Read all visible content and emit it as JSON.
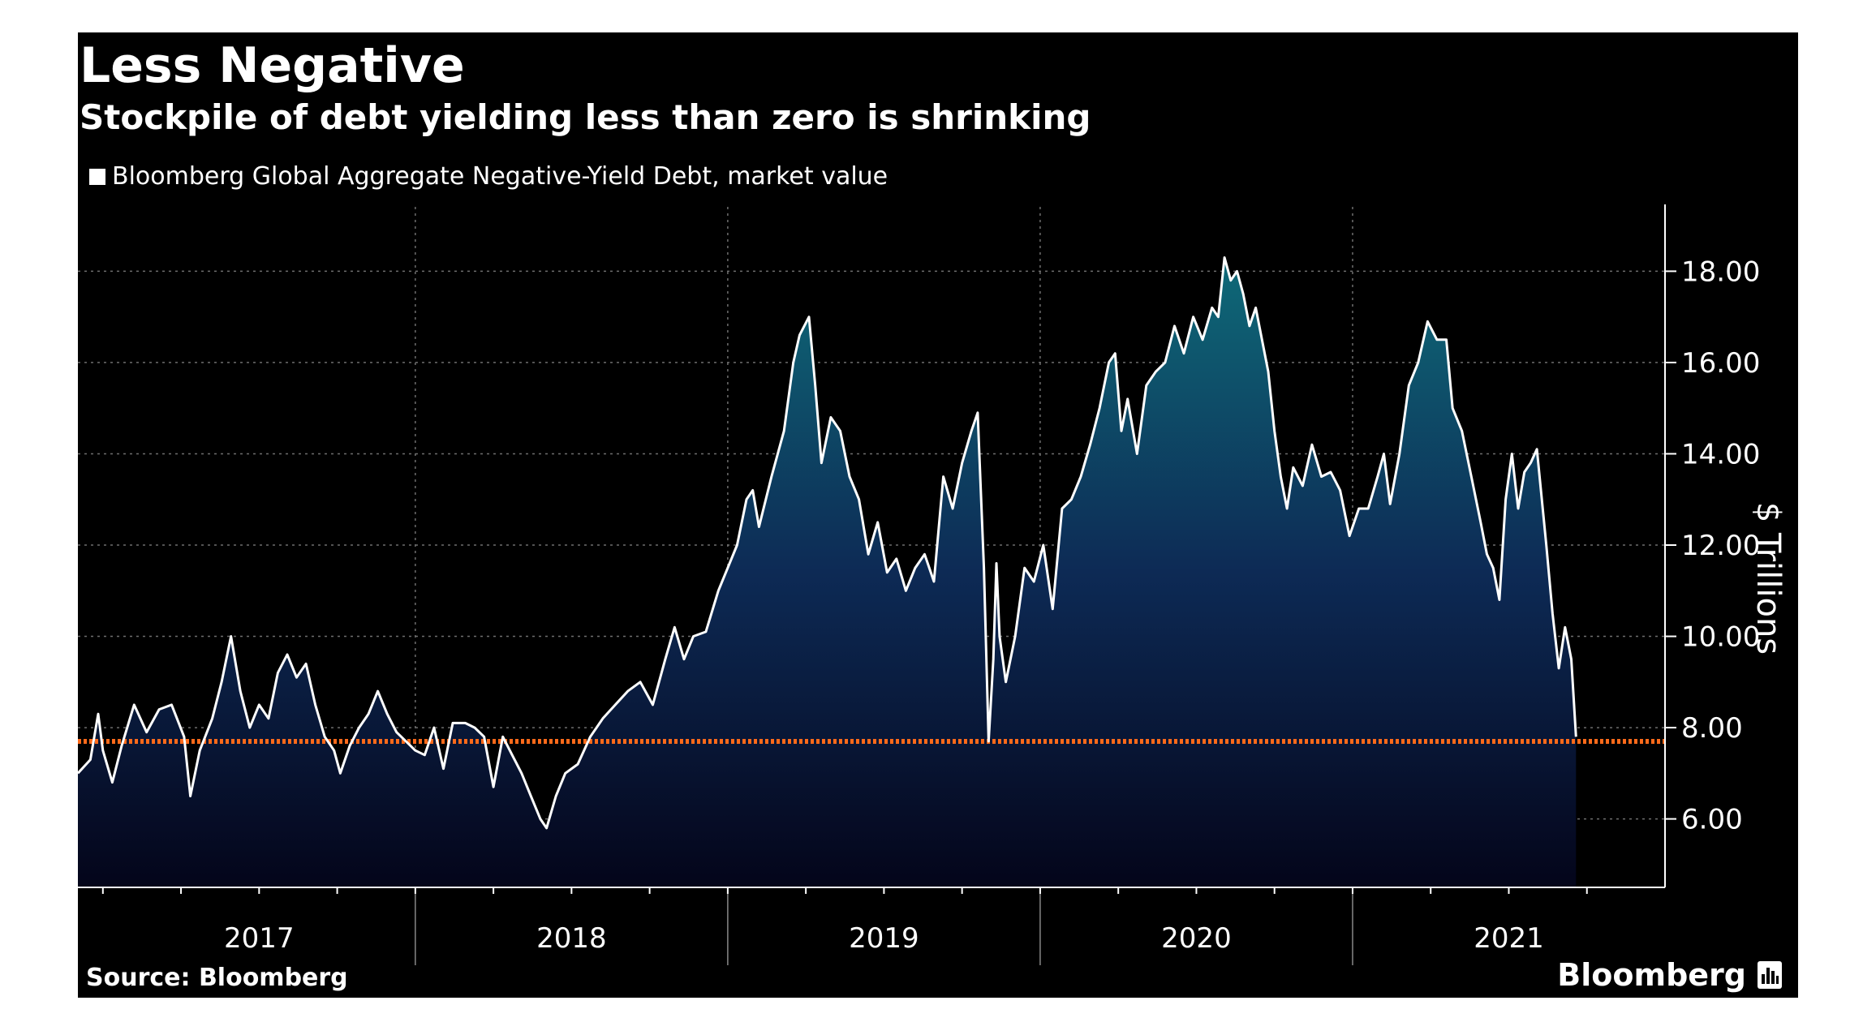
{
  "header": {
    "title": "Less Negative",
    "subtitle": "Stockpile of debt yielding less than zero is shrinking"
  },
  "legend": {
    "label": "Bloomberg Global Aggregate Negative-Yield Debt, market value"
  },
  "footer": {
    "source": "Source: Bloomberg",
    "brand": "Bloomberg",
    "brand_icon": "bloomberg-logo-icon"
  },
  "colors": {
    "background": "#000000",
    "line": "#ffffff",
    "area_top": "#0e6a78",
    "area_mid": "#0d2a55",
    "area_bottom": "#04051a",
    "reference_line": "#ff6a1a",
    "grid": "#6e6e6e"
  },
  "chart_data": {
    "type": "area",
    "title": "Less Negative",
    "subtitle": "Stockpile of debt yielding less than zero is shrinking",
    "ylabel": "$ Trillions",
    "y_axis_side": "right",
    "ylim": [
      4.5,
      19.5
    ],
    "yticks": [
      "6.00",
      "8.00",
      "10.00",
      "12.00",
      "14.00",
      "16.00",
      "18.00"
    ],
    "x_range": [
      2016.92,
      2022.0
    ],
    "year_labels": [
      "2017",
      "2018",
      "2019",
      "2020",
      "2021"
    ],
    "reference_line": {
      "y": 7.7
    },
    "grid": true,
    "legend_position": "top-left",
    "series": [
      {
        "name": "Bloomberg Global Aggregate Negative-Yield Debt, market value",
        "points": [
          [
            2016.92,
            7.0
          ],
          [
            2016.96,
            7.3
          ],
          [
            2016.985,
            8.3
          ],
          [
            2017.0,
            7.5
          ],
          [
            2017.03,
            6.8
          ],
          [
            2017.06,
            7.6
          ],
          [
            2017.1,
            8.5
          ],
          [
            2017.14,
            7.9
          ],
          [
            2017.18,
            8.4
          ],
          [
            2017.22,
            8.5
          ],
          [
            2017.26,
            7.8
          ],
          [
            2017.28,
            6.5
          ],
          [
            2017.31,
            7.5
          ],
          [
            2017.35,
            8.2
          ],
          [
            2017.38,
            9.0
          ],
          [
            2017.41,
            10.0
          ],
          [
            2017.44,
            8.8
          ],
          [
            2017.47,
            8.0
          ],
          [
            2017.5,
            8.5
          ],
          [
            2017.53,
            8.2
          ],
          [
            2017.56,
            9.2
          ],
          [
            2017.59,
            9.6
          ],
          [
            2017.62,
            9.1
          ],
          [
            2017.65,
            9.4
          ],
          [
            2017.68,
            8.5
          ],
          [
            2017.71,
            7.8
          ],
          [
            2017.74,
            7.5
          ],
          [
            2017.76,
            7.0
          ],
          [
            2017.79,
            7.6
          ],
          [
            2017.82,
            8.0
          ],
          [
            2017.85,
            8.3
          ],
          [
            2017.88,
            8.8
          ],
          [
            2017.91,
            8.3
          ],
          [
            2017.94,
            7.9
          ],
          [
            2017.97,
            7.7
          ],
          [
            2018.0,
            7.5
          ],
          [
            2018.03,
            7.4
          ],
          [
            2018.06,
            8.0
          ],
          [
            2018.09,
            7.1
          ],
          [
            2018.12,
            8.1
          ],
          [
            2018.16,
            8.1
          ],
          [
            2018.19,
            8.0
          ],
          [
            2018.22,
            7.8
          ],
          [
            2018.25,
            6.7
          ],
          [
            2018.28,
            7.8
          ],
          [
            2018.31,
            7.4
          ],
          [
            2018.34,
            7.0
          ],
          [
            2018.37,
            6.5
          ],
          [
            2018.4,
            6.0
          ],
          [
            2018.42,
            5.8
          ],
          [
            2018.45,
            6.5
          ],
          [
            2018.48,
            7.0
          ],
          [
            2018.52,
            7.2
          ],
          [
            2018.56,
            7.8
          ],
          [
            2018.6,
            8.2
          ],
          [
            2018.64,
            8.5
          ],
          [
            2018.68,
            8.8
          ],
          [
            2018.72,
            9.0
          ],
          [
            2018.76,
            8.5
          ],
          [
            2018.8,
            9.5
          ],
          [
            2018.83,
            10.2
          ],
          [
            2018.86,
            9.5
          ],
          [
            2018.89,
            10.0
          ],
          [
            2018.93,
            10.1
          ],
          [
            2018.97,
            11.0
          ],
          [
            2019.0,
            11.5
          ],
          [
            2019.03,
            12.0
          ],
          [
            2019.06,
            13.0
          ],
          [
            2019.08,
            13.2
          ],
          [
            2019.1,
            12.4
          ],
          [
            2019.14,
            13.5
          ],
          [
            2019.18,
            14.5
          ],
          [
            2019.21,
            16.0
          ],
          [
            2019.23,
            16.6
          ],
          [
            2019.26,
            17.0
          ],
          [
            2019.28,
            15.5
          ],
          [
            2019.3,
            13.8
          ],
          [
            2019.33,
            14.8
          ],
          [
            2019.36,
            14.5
          ],
          [
            2019.39,
            13.5
          ],
          [
            2019.42,
            13.0
          ],
          [
            2019.45,
            11.8
          ],
          [
            2019.48,
            12.5
          ],
          [
            2019.51,
            11.4
          ],
          [
            2019.54,
            11.7
          ],
          [
            2019.57,
            11.0
          ],
          [
            2019.6,
            11.5
          ],
          [
            2019.63,
            11.8
          ],
          [
            2019.66,
            11.2
          ],
          [
            2019.69,
            13.5
          ],
          [
            2019.72,
            12.8
          ],
          [
            2019.75,
            13.8
          ],
          [
            2019.78,
            14.5
          ],
          [
            2019.8,
            14.9
          ],
          [
            2019.82,
            11.5
          ],
          [
            2019.835,
            7.7
          ],
          [
            2019.85,
            9.5
          ],
          [
            2019.86,
            11.6
          ],
          [
            2019.87,
            10.0
          ],
          [
            2019.89,
            9.0
          ],
          [
            2019.92,
            10.0
          ],
          [
            2019.95,
            11.5
          ],
          [
            2019.98,
            11.2
          ],
          [
            2020.01,
            12.0
          ],
          [
            2020.04,
            10.6
          ],
          [
            2020.07,
            12.8
          ],
          [
            2020.1,
            13.0
          ],
          [
            2020.13,
            13.5
          ],
          [
            2020.16,
            14.2
          ],
          [
            2020.19,
            15.0
          ],
          [
            2020.22,
            16.0
          ],
          [
            2020.24,
            16.2
          ],
          [
            2020.26,
            14.5
          ],
          [
            2020.28,
            15.2
          ],
          [
            2020.31,
            14.0
          ],
          [
            2020.34,
            15.5
          ],
          [
            2020.37,
            15.8
          ],
          [
            2020.4,
            16.0
          ],
          [
            2020.43,
            16.8
          ],
          [
            2020.46,
            16.2
          ],
          [
            2020.49,
            17.0
          ],
          [
            2020.52,
            16.5
          ],
          [
            2020.55,
            17.2
          ],
          [
            2020.57,
            17.0
          ],
          [
            2020.59,
            18.3
          ],
          [
            2020.61,
            17.8
          ],
          [
            2020.63,
            18.0
          ],
          [
            2020.65,
            17.5
          ],
          [
            2020.67,
            16.8
          ],
          [
            2020.69,
            17.2
          ],
          [
            2020.71,
            16.5
          ],
          [
            2020.73,
            15.8
          ],
          [
            2020.75,
            14.5
          ],
          [
            2020.77,
            13.5
          ],
          [
            2020.79,
            12.8
          ],
          [
            2020.81,
            13.7
          ],
          [
            2020.84,
            13.3
          ],
          [
            2020.87,
            14.2
          ],
          [
            2020.9,
            13.5
          ],
          [
            2020.93,
            13.6
          ],
          [
            2020.96,
            13.2
          ],
          [
            2020.99,
            12.2
          ],
          [
            2021.02,
            12.8
          ],
          [
            2021.05,
            12.8
          ],
          [
            2021.08,
            13.5
          ],
          [
            2021.1,
            14.0
          ],
          [
            2021.12,
            12.9
          ],
          [
            2021.15,
            14.0
          ],
          [
            2021.18,
            15.5
          ],
          [
            2021.21,
            16.0
          ],
          [
            2021.24,
            16.9
          ],
          [
            2021.27,
            16.5
          ],
          [
            2021.3,
            16.5
          ],
          [
            2021.32,
            15.0
          ],
          [
            2021.35,
            14.5
          ],
          [
            2021.38,
            13.5
          ],
          [
            2021.41,
            12.5
          ],
          [
            2021.43,
            11.8
          ],
          [
            2021.45,
            11.5
          ],
          [
            2021.47,
            10.8
          ],
          [
            2021.49,
            13.0
          ],
          [
            2021.51,
            14.0
          ],
          [
            2021.53,
            12.8
          ],
          [
            2021.55,
            13.6
          ],
          [
            2021.57,
            13.8
          ],
          [
            2021.59,
            14.1
          ],
          [
            2021.62,
            12.0
          ],
          [
            2021.64,
            10.5
          ],
          [
            2021.66,
            9.3
          ],
          [
            2021.68,
            10.2
          ],
          [
            2021.7,
            9.5
          ],
          [
            2021.715,
            7.8
          ]
        ]
      }
    ]
  }
}
